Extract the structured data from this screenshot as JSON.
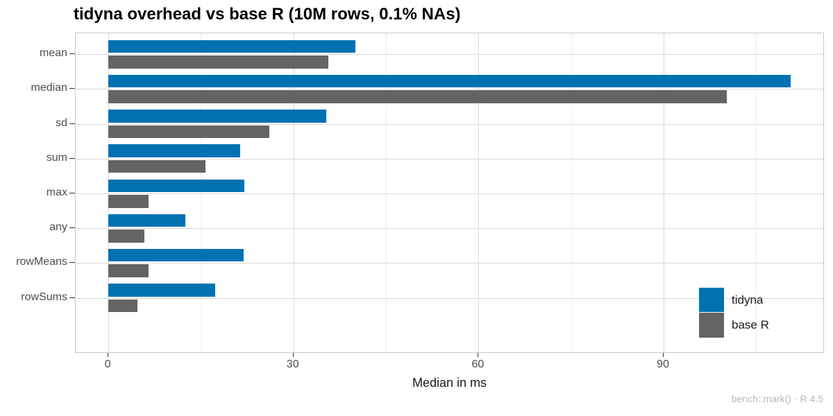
{
  "chart_data": {
    "type": "bar",
    "orientation": "horizontal",
    "title": "tidyna overhead vs base R (10M rows, 0.1% NAs)",
    "xlabel": "Median in ms",
    "caption": "bench::mark() · R 4.5",
    "categories": [
      "mean",
      "median",
      "sd",
      "sum",
      "max",
      "any",
      "rowMeans",
      "rowSums"
    ],
    "series": [
      {
        "name": "tidyna",
        "color": "#0072B2",
        "values": [
          40.0,
          110.6,
          35.3,
          21.4,
          22.0,
          12.5,
          21.9,
          17.3
        ]
      },
      {
        "name": "base R",
        "color": "#646464",
        "values": [
          35.7,
          100.2,
          26.1,
          15.7,
          6.5,
          5.8,
          6.5,
          4.7
        ]
      }
    ],
    "x_major_ticks": [
      0,
      30,
      60,
      90
    ],
    "x_minor_ticks": [
      15,
      45,
      75,
      105
    ],
    "xlim": [
      -5.3,
      116.1
    ],
    "grid": "vertical major+minor, horizontal major at category centers",
    "legend_position": "inside bottom-right"
  },
  "colors": {
    "grid_major": "#d9d9d9",
    "grid_minor": "#ededed",
    "panel_border": "#c8c8c8",
    "axis_text": "#4d4d4d",
    "tick_mark": "#333333",
    "title_text": "#000000",
    "axis_title_text": "#1a1a1a",
    "caption_text": "#b9b9b9",
    "background": "#ffffff"
  }
}
